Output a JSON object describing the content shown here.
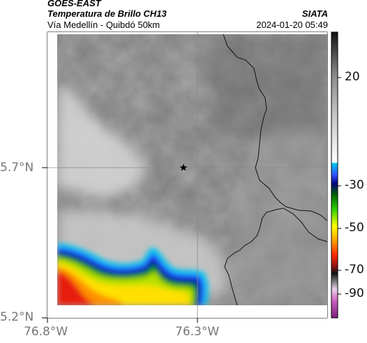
{
  "header": {
    "satellite": "GOES-EAST",
    "product": "Temperatura de Brillo CH13",
    "region": "Vía Medellín - Quibdó 50km",
    "agency": "SIATA",
    "datetime": "2024-01-20 05:49"
  },
  "axes": {
    "lat_ticks": [
      "5.7°N",
      "5.2°N"
    ],
    "lon_ticks": [
      "76.8°W",
      "76.3°W"
    ]
  },
  "colorbar": {
    "ticks": [
      "20",
      "-30",
      "-50",
      "-70",
      "-90"
    ]
  },
  "colors": {
    "cold_cloud": "#e02010",
    "border": "#111111",
    "station_marker": "#000000"
  },
  "icons": {
    "station": "star-marker-icon"
  }
}
